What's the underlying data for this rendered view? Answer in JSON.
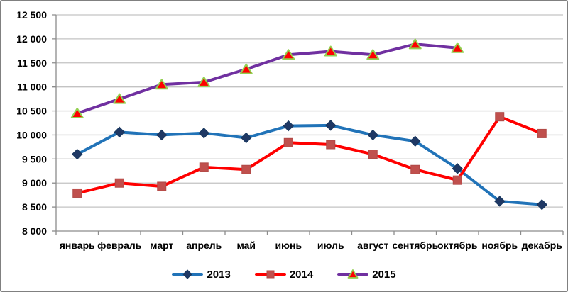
{
  "chart_data": {
    "type": "line",
    "title": "",
    "xlabel": "",
    "ylabel": "",
    "categories": [
      "январь",
      "февраль",
      "март",
      "апрель",
      "май",
      "июнь",
      "июль",
      "август",
      "сентябрь",
      "октябрь",
      "ноябрь",
      "декабрь"
    ],
    "series": [
      {
        "name": "2013",
        "marker": "diamond",
        "line_color": "#2173B8",
        "marker_fill": "#1F3864",
        "marker_stroke": "#17375E",
        "values": [
          9600,
          10060,
          10000,
          10040,
          9940,
          10190,
          10200,
          10000,
          9870,
          9300,
          8620,
          8550
        ]
      },
      {
        "name": "2014",
        "marker": "square",
        "line_color": "#FF0000",
        "marker_fill": "#C0504D",
        "marker_stroke": "#B04946",
        "values": [
          8790,
          9000,
          8930,
          9330,
          9280,
          9840,
          9800,
          9600,
          9280,
          9060,
          10380,
          10030
        ]
      },
      {
        "name": "2015",
        "marker": "triangle",
        "line_color": "#7030A0",
        "marker_fill": "#FF0000",
        "marker_stroke": "#92D050",
        "values": [
          10450,
          10750,
          11050,
          11100,
          11370,
          11670,
          11740,
          11670,
          11890,
          11810,
          null,
          null
        ]
      }
    ],
    "ylim": [
      8000,
      12500
    ],
    "ytick_step": 500,
    "ytick_labels": [
      "8 000",
      "8 500",
      "9 000",
      "9 500",
      "10 000",
      "10 500",
      "11 000",
      "11 500",
      "12 000",
      "12 500"
    ],
    "grid": true,
    "legend_position": "bottom",
    "colors": {
      "background": "#FFFFFF",
      "border": "#808080",
      "gridline": "#C3C3C3",
      "axis": "#8C8C8C",
      "text": "#000000"
    }
  }
}
